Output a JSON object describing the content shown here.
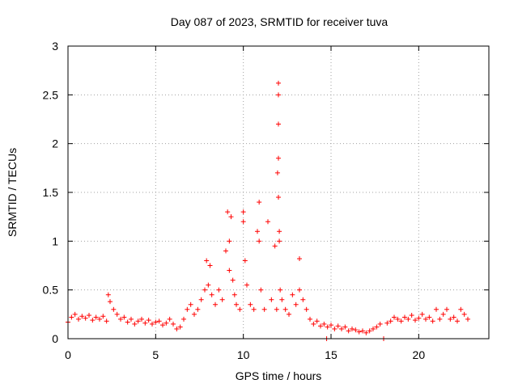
{
  "chart_data": {
    "type": "scatter",
    "title": "Day 087 of 2023, SRMTID for receiver tuva",
    "xlabel": "GPS time / hours",
    "ylabel": "SRMTID / TECUs",
    "xlim": [
      0,
      24
    ],
    "ylim": [
      0,
      3
    ],
    "xticks": [
      0,
      5,
      10,
      15,
      20
    ],
    "xtick_labels": [
      "0",
      "5",
      "10",
      "15",
      "20"
    ],
    "yticks": [
      0,
      0.5,
      1,
      1.5,
      2,
      2.5,
      3
    ],
    "ytick_labels": [
      "0",
      "0.5",
      "1",
      "1.5",
      "2",
      "2.5",
      "3"
    ],
    "grid": true,
    "marker": "+",
    "series": [
      {
        "name": "SRMTID",
        "color": "#ff0000",
        "x": [
          0.0,
          0.2,
          0.4,
          0.6,
          0.8,
          1.0,
          1.2,
          1.4,
          1.6,
          1.8,
          2.0,
          2.2,
          2.3,
          2.4,
          2.6,
          2.8,
          3.0,
          3.2,
          3.4,
          3.6,
          3.8,
          4.0,
          4.2,
          4.4,
          4.6,
          4.8,
          5.0,
          5.2,
          5.4,
          5.6,
          5.8,
          6.0,
          6.2,
          6.4,
          6.6,
          6.8,
          7.0,
          7.2,
          7.4,
          7.6,
          7.8,
          7.9,
          8.0,
          8.2,
          8.4,
          8.6,
          8.8,
          9.0,
          9.1,
          9.2,
          9.3,
          9.4,
          9.5,
          9.6,
          9.8,
          10.0,
          10.1,
          10.2,
          10.4,
          10.6,
          10.8,
          10.9,
          11.0,
          11.2,
          11.4,
          11.6,
          11.8,
          11.9,
          12.0,
          12.05,
          12.1,
          12.2,
          12.4,
          12.6,
          12.8,
          13.0,
          13.2,
          13.4,
          13.6,
          13.8,
          14.0,
          14.2,
          14.4,
          14.6,
          14.75,
          14.8,
          15.0,
          15.2,
          15.4,
          15.6,
          15.8,
          16.0,
          16.2,
          16.4,
          16.6,
          16.8,
          17.0,
          17.2,
          17.4,
          17.6,
          17.8,
          18.0,
          18.2,
          18.4,
          18.6,
          18.8,
          19.0,
          19.2,
          19.4,
          19.6,
          19.8,
          20.0,
          20.2,
          20.4,
          20.6,
          20.8,
          21.0,
          21.2,
          21.4,
          21.6,
          21.8,
          22.0,
          22.2,
          22.4,
          22.6,
          22.8,
          11.95,
          12.0,
          12.0,
          12.0,
          12.0,
          12.05,
          9.2,
          10.0,
          10.9,
          8.1,
          13.2
        ],
        "y": [
          0.17,
          0.22,
          0.25,
          0.2,
          0.23,
          0.21,
          0.24,
          0.19,
          0.22,
          0.2,
          0.23,
          0.18,
          0.45,
          0.38,
          0.3,
          0.25,
          0.2,
          0.22,
          0.17,
          0.2,
          0.15,
          0.18,
          0.2,
          0.16,
          0.19,
          0.15,
          0.17,
          0.18,
          0.14,
          0.16,
          0.2,
          0.15,
          0.1,
          0.12,
          0.2,
          0.3,
          0.35,
          0.25,
          0.3,
          0.4,
          0.5,
          0.8,
          0.55,
          0.45,
          0.35,
          0.5,
          0.4,
          0.9,
          1.3,
          0.7,
          1.25,
          0.6,
          0.45,
          0.35,
          0.3,
          1.3,
          0.8,
          0.55,
          0.35,
          0.3,
          1.1,
          1.4,
          0.5,
          0.3,
          1.2,
          0.4,
          0.95,
          0.3,
          1.45,
          1.0,
          0.5,
          0.4,
          0.3,
          0.25,
          0.45,
          0.35,
          0.5,
          0.4,
          0.3,
          0.2,
          0.15,
          0.18,
          0.13,
          0.15,
          0.0,
          0.12,
          0.14,
          0.1,
          0.13,
          0.1,
          0.12,
          0.08,
          0.1,
          0.09,
          0.07,
          0.08,
          0.06,
          0.08,
          0.1,
          0.12,
          0.15,
          0.0,
          0.16,
          0.18,
          0.22,
          0.2,
          0.18,
          0.22,
          0.2,
          0.24,
          0.19,
          0.21,
          0.25,
          0.2,
          0.22,
          0.18,
          0.3,
          0.2,
          0.25,
          0.3,
          0.2,
          0.22,
          0.18,
          0.3,
          0.25,
          0.2,
          1.7,
          1.85,
          2.2,
          2.5,
          2.62,
          1.1,
          1.0,
          1.2,
          1.0,
          0.75,
          0.82
        ]
      }
    ]
  }
}
